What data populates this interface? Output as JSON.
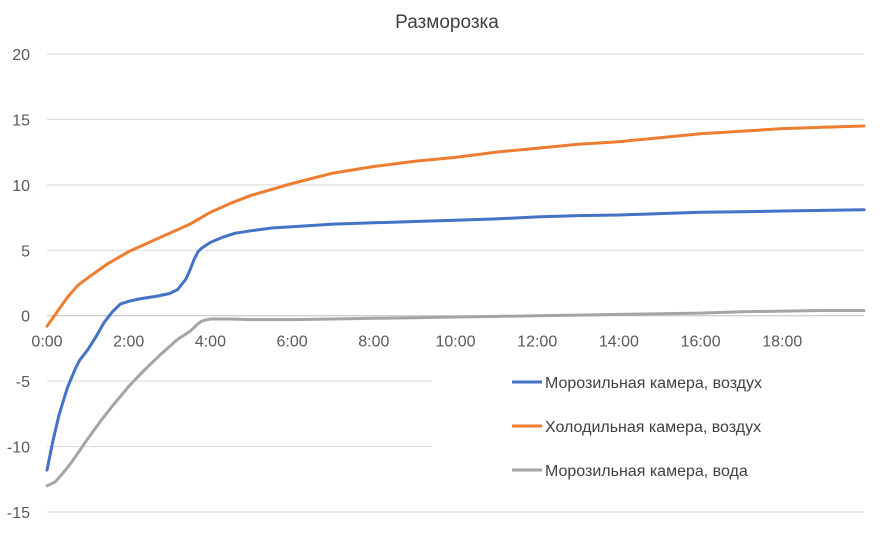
{
  "chart_data": {
    "type": "line",
    "title": "Разморозка",
    "xlabel": "",
    "ylabel": "",
    "x_unit": "hours",
    "xlim": [
      0,
      20
    ],
    "ylim": [
      -15,
      20
    ],
    "y_ticks": [
      -15,
      -10,
      -5,
      0,
      5,
      10,
      15,
      20
    ],
    "x_ticks": [
      0,
      2,
      4,
      6,
      8,
      10,
      12,
      14,
      16,
      18
    ],
    "x_tick_labels": [
      "0:00",
      "2:00",
      "4:00",
      "6:00",
      "8:00",
      "10:00",
      "12:00",
      "14:00",
      "16:00",
      "18:00"
    ],
    "grid": "horizontal",
    "legend_position": "bottom-right",
    "series": [
      {
        "name": "Морозильная камера, воздух",
        "color": "#4472C4",
        "x": [
          0,
          0.15,
          0.3,
          0.5,
          0.7,
          0.8,
          1.0,
          1.2,
          1.4,
          1.6,
          1.8,
          2.0,
          2.2,
          2.4,
          2.7,
          3.0,
          3.2,
          3.4,
          3.5,
          3.6,
          3.7,
          3.8,
          4.0,
          4.3,
          4.6,
          5.0,
          5.5,
          6.0,
          7.0,
          8.0,
          9.0,
          10.0,
          11.0,
          12.0,
          13.0,
          14.0,
          15.0,
          16.0,
          17.0,
          18.0,
          19.0,
          20.0
        ],
        "y": [
          -11.8,
          -9.5,
          -7.5,
          -5.5,
          -4.0,
          -3.4,
          -2.6,
          -1.6,
          -0.5,
          0.3,
          0.9,
          1.1,
          1.25,
          1.35,
          1.5,
          1.7,
          2.0,
          2.8,
          3.5,
          4.3,
          4.9,
          5.2,
          5.6,
          6.0,
          6.3,
          6.5,
          6.7,
          6.8,
          7.0,
          7.1,
          7.2,
          7.3,
          7.4,
          7.55,
          7.65,
          7.7,
          7.8,
          7.9,
          7.95,
          8.0,
          8.05,
          8.1
        ]
      },
      {
        "name": "Холодильная камера, воздух",
        "color": "#ED7D31",
        "x": [
          0,
          0.25,
          0.5,
          0.75,
          1.0,
          1.5,
          2.0,
          2.5,
          3.0,
          3.5,
          4.0,
          4.5,
          5.0,
          6.0,
          7.0,
          8.0,
          9.0,
          10.0,
          11.0,
          12.0,
          13.0,
          14.0,
          15.0,
          16.0,
          17.0,
          18.0,
          19.0,
          20.0
        ],
        "y": [
          -0.8,
          0.3,
          1.4,
          2.3,
          2.9,
          4.0,
          4.9,
          5.6,
          6.3,
          7.0,
          7.9,
          8.6,
          9.2,
          10.1,
          10.9,
          11.4,
          11.8,
          12.1,
          12.5,
          12.8,
          13.1,
          13.3,
          13.6,
          13.9,
          14.1,
          14.3,
          14.4,
          14.5
        ]
      },
      {
        "name": "Морозильная камера, вода",
        "color": "#A5A5A5",
        "x": [
          0,
          0.2,
          0.4,
          0.6,
          0.8,
          1.0,
          1.3,
          1.6,
          2.0,
          2.4,
          2.8,
          3.2,
          3.5,
          3.7,
          3.8,
          4.0,
          4.5,
          5.0,
          6.0,
          7.0,
          8.0,
          9.0,
          10.0,
          11.0,
          12.0,
          13.0,
          14.0,
          15.0,
          16.0,
          17.0,
          18.0,
          19.0,
          20.0
        ],
        "y": [
          -13.0,
          -12.7,
          -12.0,
          -11.2,
          -10.3,
          -9.4,
          -8.1,
          -6.9,
          -5.4,
          -4.1,
          -2.9,
          -1.8,
          -1.2,
          -0.6,
          -0.4,
          -0.25,
          -0.25,
          -0.3,
          -0.3,
          -0.25,
          -0.2,
          -0.15,
          -0.1,
          -0.05,
          0.0,
          0.05,
          0.1,
          0.15,
          0.2,
          0.3,
          0.35,
          0.4,
          0.4
        ]
      }
    ]
  }
}
